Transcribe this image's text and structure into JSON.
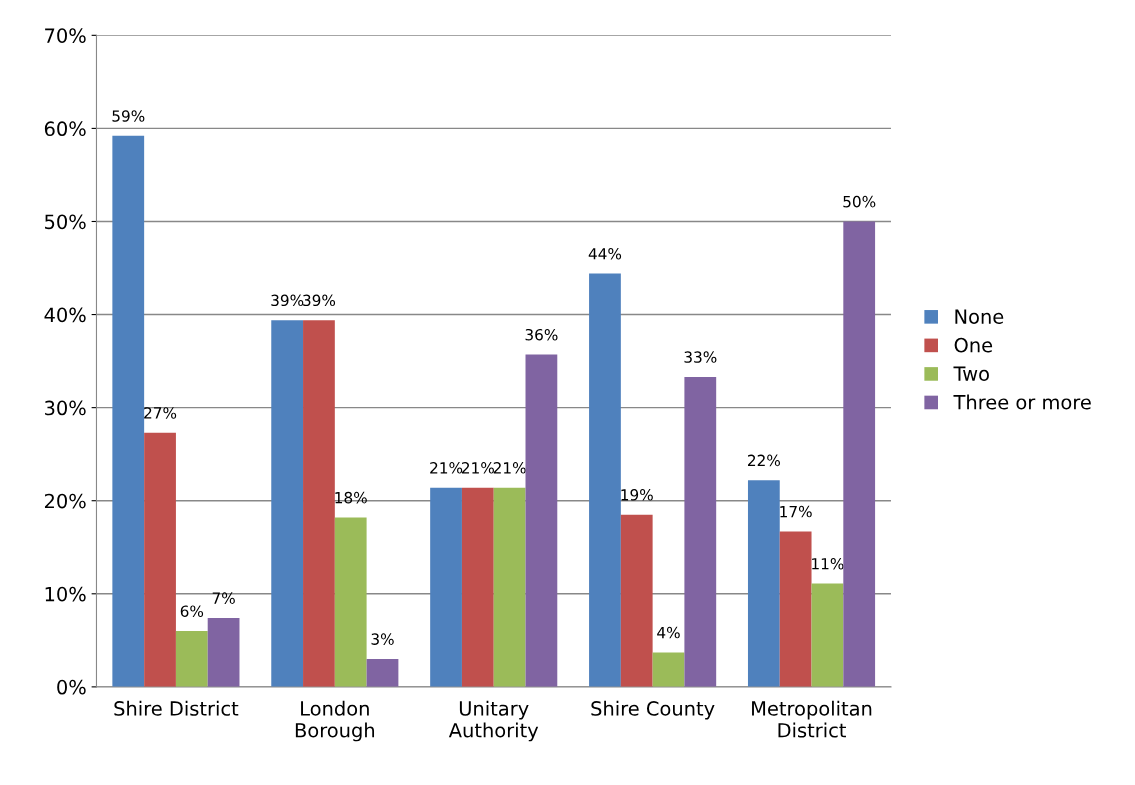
{
  "chart_data": {
    "type": "bar",
    "categories": [
      "Shire District",
      "London\nBorough",
      "Unitary\nAuthority",
      "Shire County",
      "Metropolitan\nDistrict"
    ],
    "series": [
      {
        "name": "None",
        "color": "#4f81bd",
        "values": [
          59.2,
          39.4,
          21.4,
          44.4,
          22.2
        ],
        "value_labels": [
          "59%",
          "39%",
          "21%",
          "44%",
          "22%"
        ]
      },
      {
        "name": "One",
        "color": "#c0504d",
        "values": [
          27.3,
          39.4,
          21.4,
          18.5,
          16.7
        ],
        "value_labels": [
          "27%",
          "39%",
          "21%",
          "19%",
          "17%"
        ]
      },
      {
        "name": "Two",
        "color": "#9bbb59",
        "values": [
          6.0,
          18.2,
          21.4,
          3.7,
          11.1
        ],
        "value_labels": [
          "6%",
          "18%",
          "21%",
          "4%",
          "11%"
        ]
      },
      {
        "name": "Three or more",
        "color": "#8064a2",
        "values": [
          7.4,
          3.0,
          35.7,
          33.3,
          50.0
        ],
        "value_labels": [
          "7%",
          "3%",
          "36%",
          "33%",
          "50%"
        ]
      }
    ],
    "ylim": [
      0,
      70
    ],
    "yticks": [
      {
        "value": 0,
        "label": "0%"
      },
      {
        "value": 10,
        "label": "10%"
      },
      {
        "value": 20,
        "label": "20%"
      },
      {
        "value": 30,
        "label": "30%"
      },
      {
        "value": 40,
        "label": "40%"
      },
      {
        "value": 50,
        "label": "50%"
      },
      {
        "value": 60,
        "label": "60%"
      },
      {
        "value": 70,
        "label": "70%"
      }
    ],
    "grid": "y",
    "legend": "right"
  }
}
